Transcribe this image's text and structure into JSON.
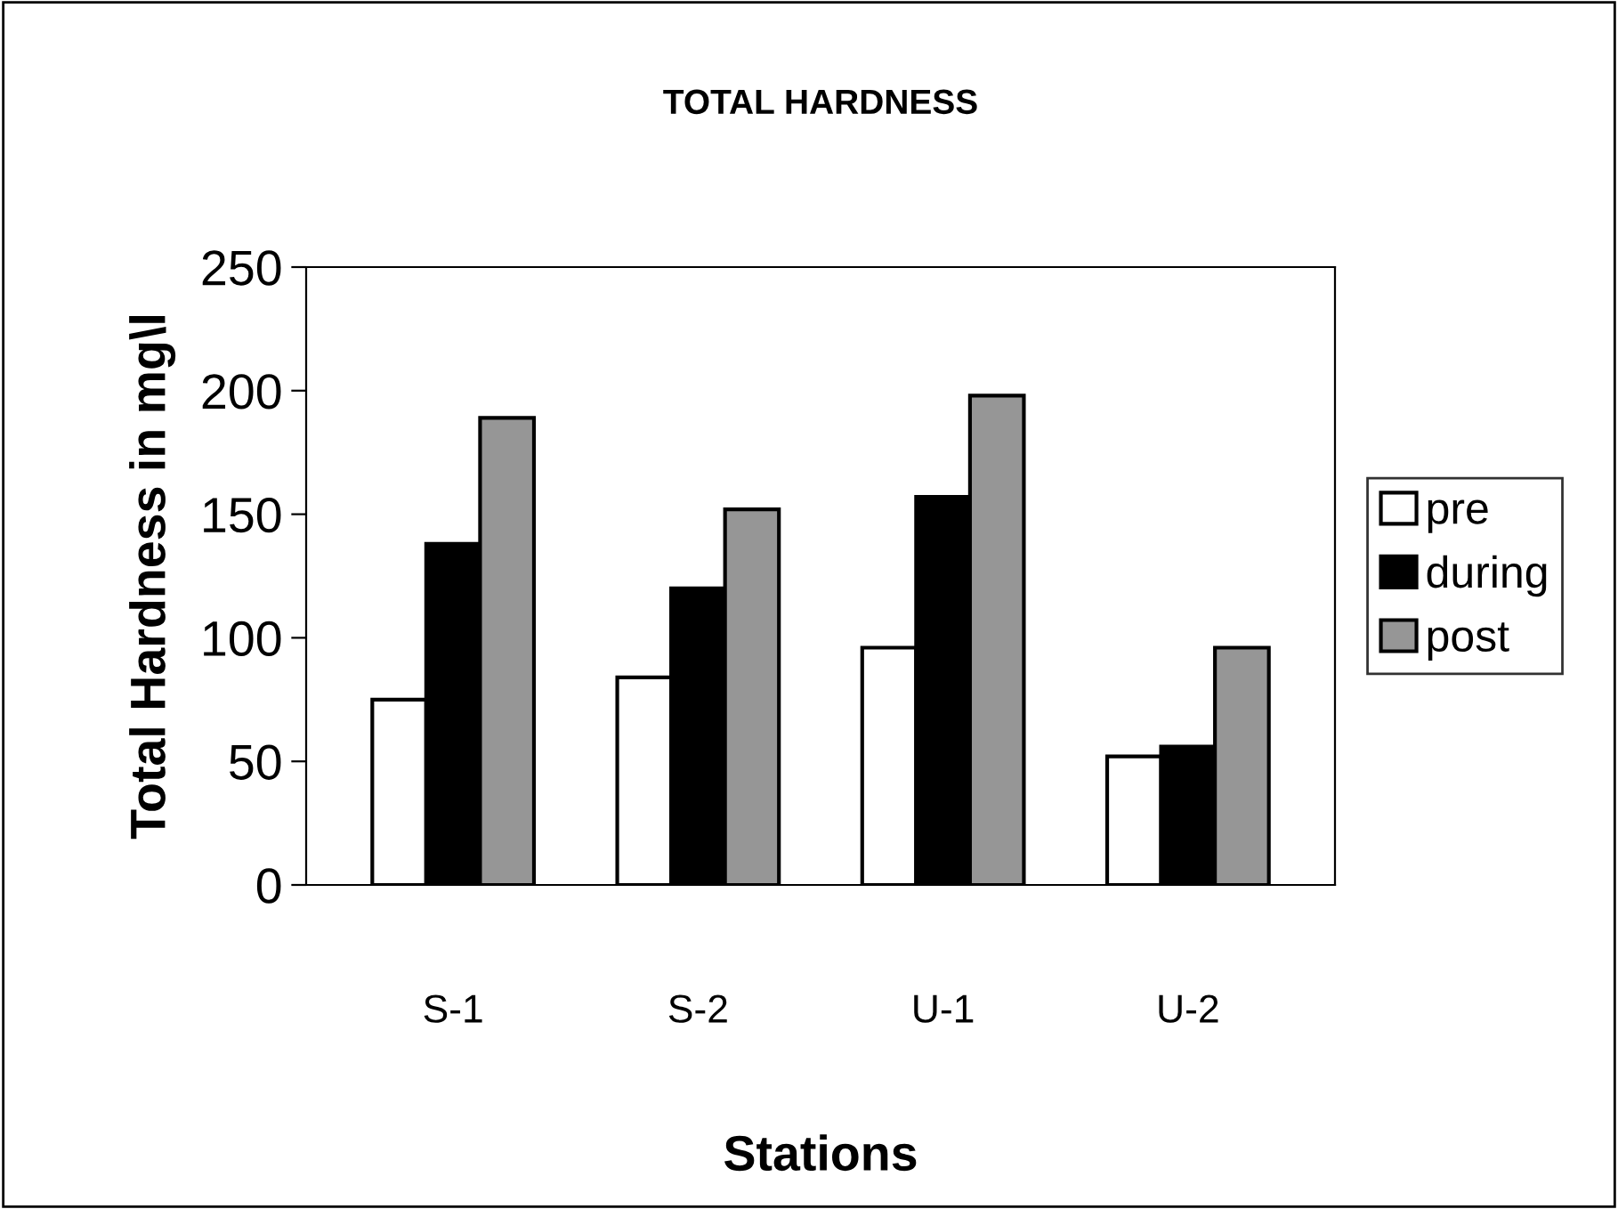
{
  "chart_data": {
    "type": "bar",
    "title": "TOTAL HARDNESS",
    "xlabel": "Stations",
    "ylabel": "Total Hardness in mg\\l",
    "categories": [
      "S-1",
      "S-2",
      "U-1",
      "U-2"
    ],
    "series": [
      {
        "name": "pre",
        "color": "#ffffff",
        "values": [
          75,
          84,
          96,
          52
        ]
      },
      {
        "name": "during",
        "color": "#000000",
        "values": [
          138,
          120,
          157,
          56
        ]
      },
      {
        "name": "post",
        "color": "#969696",
        "values": [
          189,
          152,
          198,
          96
        ]
      }
    ],
    "ylim": [
      0,
      250
    ],
    "yticks": [
      0,
      50,
      100,
      150,
      200,
      250
    ],
    "grid": false,
    "legend": "right"
  }
}
